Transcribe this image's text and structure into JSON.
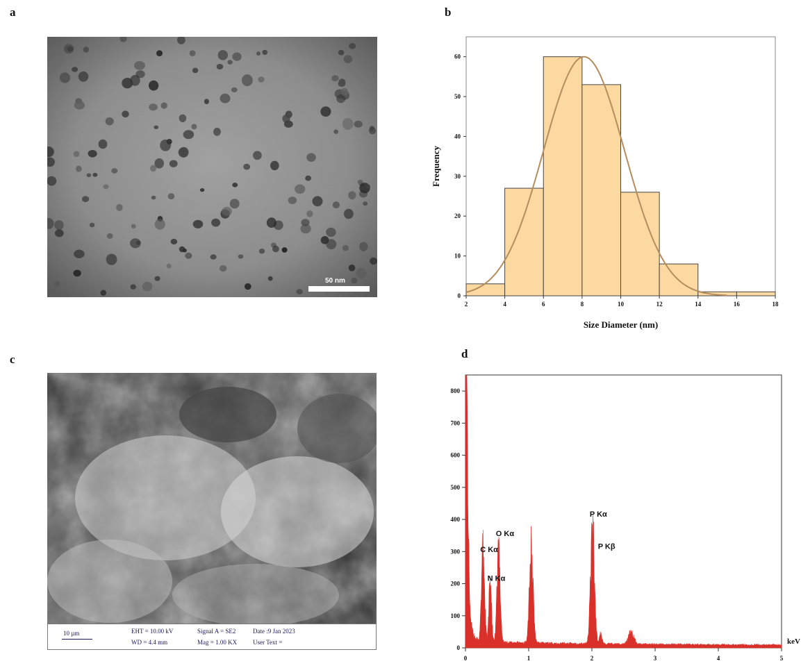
{
  "panels": {
    "a": "a",
    "b": "b",
    "c": "c",
    "d": "d"
  },
  "tem_image": {
    "scale_bar_label": "50 nm"
  },
  "sem_image": {
    "scale_label": "10 µm",
    "eht": "EHT = 10.00 kV",
    "wd": "WD = 4.4 mm",
    "signal": "Signal A = SE2",
    "mag": "Mag = 1.00 KX",
    "date": "Date :9 Jan 2023",
    "user_text": "User Text ="
  },
  "colors": {
    "bar_fill": "#fcd9a0",
    "bar_stroke": "#444444",
    "fit_curve": "#b58c5e",
    "eds_fill": "#d9302a"
  },
  "chart_data": [
    {
      "type": "bar",
      "subtype": "histogram",
      "xlabel": "Size Diameter (nm)",
      "ylabel": "Frequency",
      "bins": [
        [
          2,
          4
        ],
        [
          4,
          6
        ],
        [
          6,
          8
        ],
        [
          8,
          10
        ],
        [
          10,
          12
        ],
        [
          12,
          14
        ],
        [
          14,
          16
        ],
        [
          16,
          18
        ]
      ],
      "values": [
        3,
        27,
        60,
        53,
        26,
        8,
        1,
        1
      ],
      "x_ticks": [
        2,
        4,
        6,
        8,
        10,
        12,
        14,
        16,
        18
      ],
      "y_ticks": [
        0,
        10,
        20,
        30,
        40,
        50,
        60
      ],
      "xlim": [
        2,
        18
      ],
      "ylim": [
        0,
        65
      ],
      "fit": {
        "type": "normal",
        "mean": 8.1,
        "peak": 60,
        "sigma": 2.1
      }
    },
    {
      "type": "area",
      "subtype": "eds_spectrum",
      "xlabel": "keV",
      "x_ticks": [
        0,
        1,
        2,
        3,
        4,
        5
      ],
      "y_ticks": [
        0,
        100,
        200,
        300,
        400,
        500,
        600,
        700,
        800
      ],
      "xlim": [
        0,
        5
      ],
      "ylim": [
        0,
        850
      ],
      "peaks": [
        {
          "x": 0.0,
          "y": 820
        },
        {
          "x": 0.277,
          "y": 290
        },
        {
          "x": 0.392,
          "y": 200
        },
        {
          "x": 0.525,
          "y": 290
        },
        {
          "x": 1.04,
          "y": 290
        },
        {
          "x": 2.01,
          "y": 380
        },
        {
          "x": 2.14,
          "y": 30
        },
        {
          "x": 2.62,
          "y": 40
        }
      ],
      "annotations": [
        {
          "text": "C Kα",
          "x": 0.277,
          "y": 290
        },
        {
          "text": "N Kα",
          "x": 0.392,
          "y": 200
        },
        {
          "text": "O Kα",
          "x": 0.525,
          "y": 340
        },
        {
          "text": "P Kα",
          "x": 2.01,
          "y": 400
        },
        {
          "text": "P Kβ",
          "x": 2.14,
          "y": 300
        }
      ]
    }
  ]
}
